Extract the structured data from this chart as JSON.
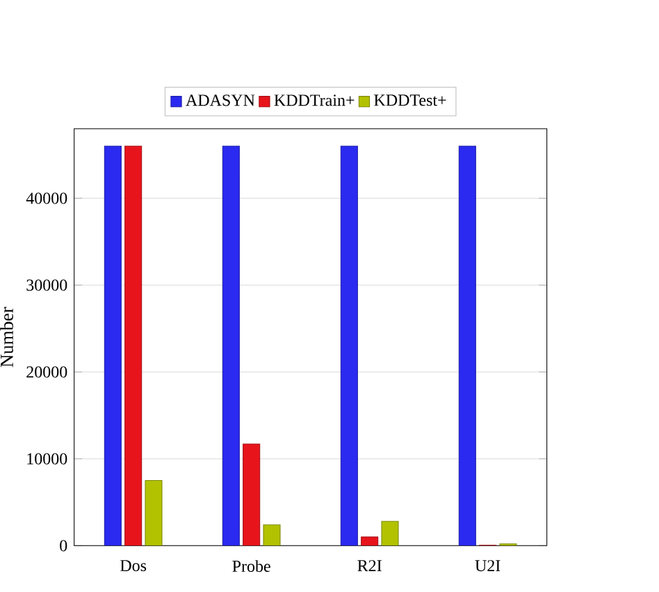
{
  "chart_data": {
    "type": "bar",
    "ylabel": "Number",
    "categories": [
      "Dos",
      "Probe",
      "R2I",
      "U2I"
    ],
    "series": [
      {
        "name": "ADASYN",
        "color": "#2a2af0",
        "values": [
          46000,
          46000,
          46000,
          46000
        ]
      },
      {
        "name": "KDDTrain+",
        "color": "#e8141c",
        "values": [
          46000,
          11700,
          1000,
          50
        ]
      },
      {
        "name": "KDDTest+",
        "color": "#b2c200",
        "values": [
          7500,
          2400,
          2800,
          200
        ]
      }
    ],
    "ylim": [
      0,
      48000
    ],
    "yticks": [
      0,
      10000,
      20000,
      30000,
      40000
    ],
    "grid": true,
    "legend": "top"
  }
}
